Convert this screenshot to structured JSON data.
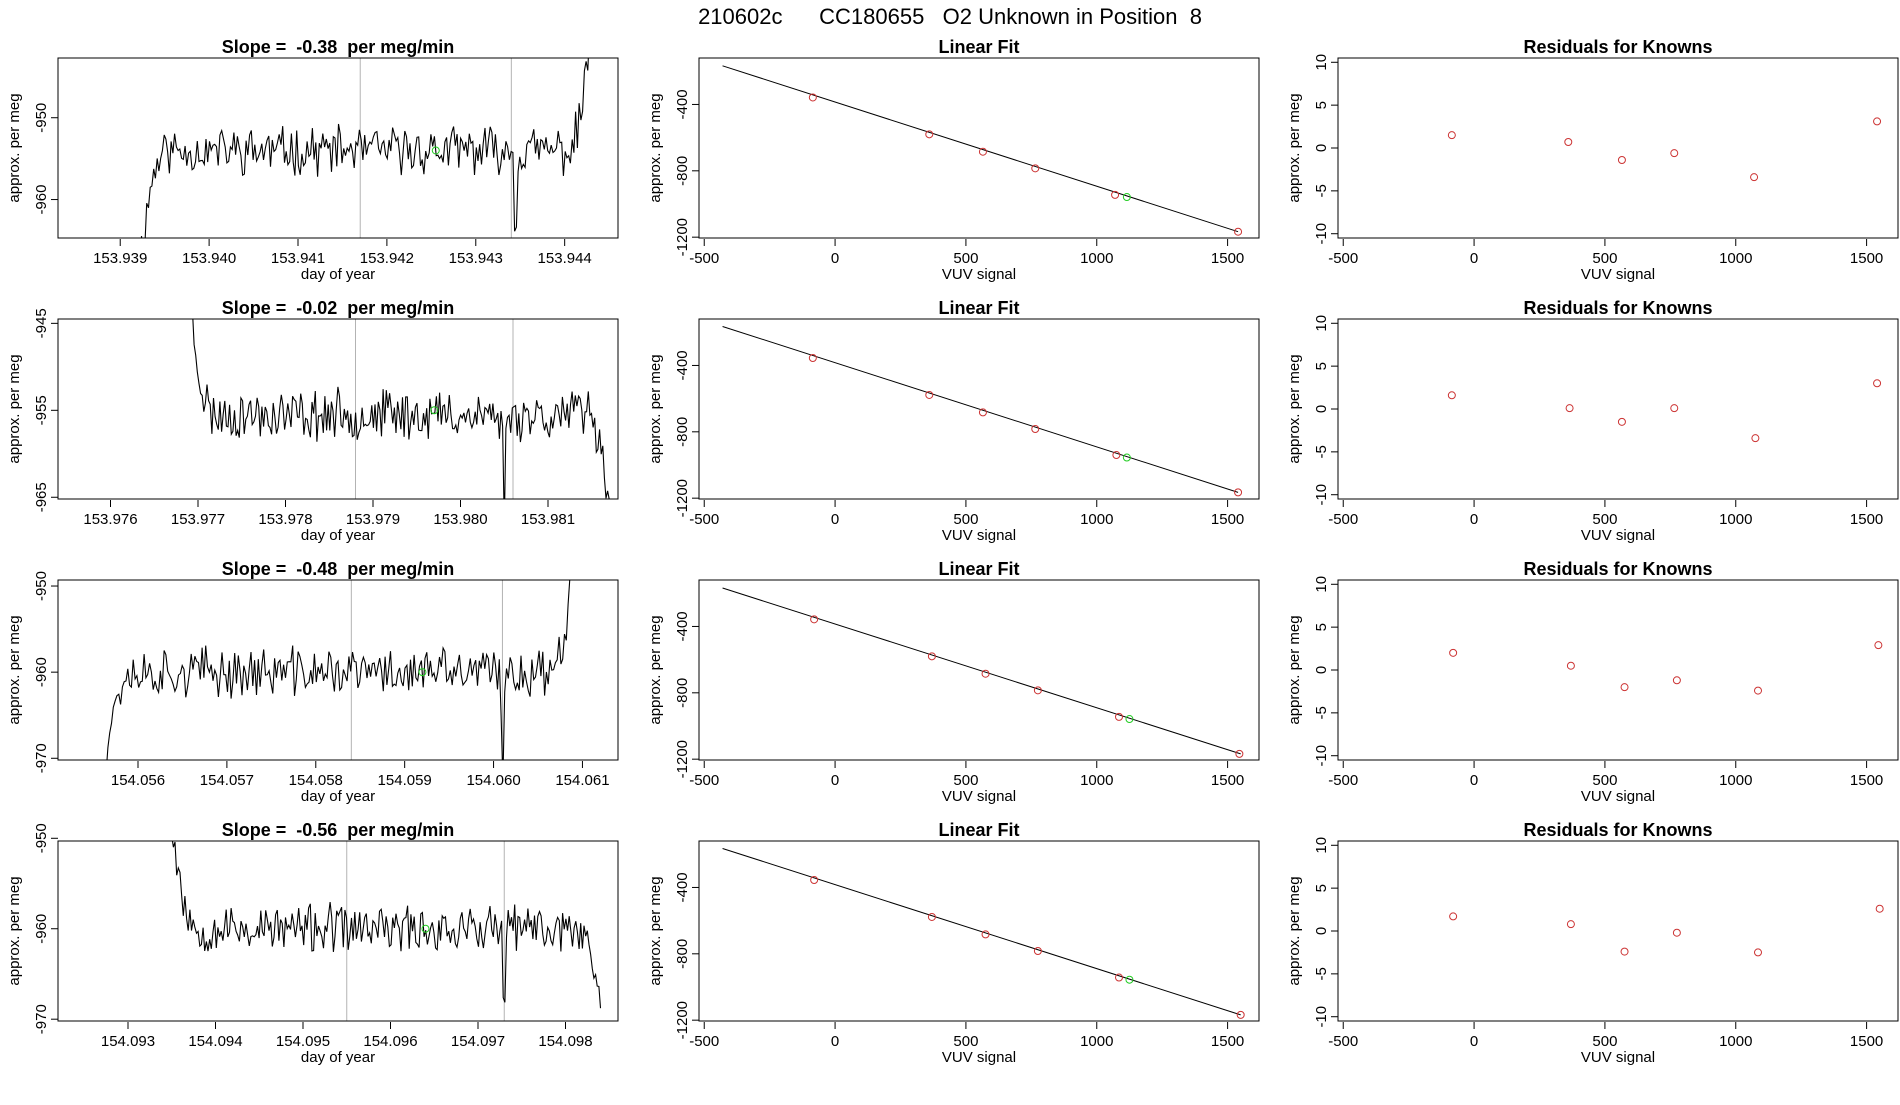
{
  "figure_title": "210602c      CC180655   O2 Unknown in Position  8",
  "colors": {
    "known": "#cc3333",
    "unknown": "#22cc22",
    "line": "#000000",
    "vline": "#b3b3b3"
  },
  "chart_data": [
    {
      "type": "line",
      "row": 0,
      "col": 0,
      "title": "Slope =  -0.38  per meg/min",
      "xlabel": "day of year",
      "ylabel": "approx. per meg",
      "xlim": [
        153.9383,
        153.9446
      ],
      "ylim": [
        -964.7,
        -942.7
      ],
      "xticks": [
        153.939,
        153.94,
        153.941,
        153.942,
        153.943,
        153.944
      ],
      "xtick_labels": [
        "153.939",
        "153.940",
        "153.941",
        "153.942",
        "153.943",
        "153.944"
      ],
      "yticks": [
        -960,
        -950
      ],
      "vlines": [
        153.9417,
        153.9434
      ],
      "x_start": 153.9392,
      "x_end": 153.9443,
      "baseline": -954,
      "noise": 2.4,
      "seed": 11,
      "start_from": -970,
      "end_to": -938,
      "dips": [
        {
          "x": 153.94345,
          "depth": 12
        }
      ],
      "unknown_point": {
        "x": 153.94255,
        "y": -954
      }
    },
    {
      "type": "scatter",
      "row": 0,
      "col": 1,
      "title": "Linear Fit",
      "xlabel": "VUV signal",
      "ylabel": "approx. per meg",
      "xlim": [
        -520,
        1620
      ],
      "ylim": [
        -1205,
        -120
      ],
      "xticks": [
        -500,
        0,
        500,
        1000,
        1500
      ],
      "yticks": [
        -1200,
        -800,
        -400
      ],
      "fit_line": {
        "x": [
          -430,
          1540
        ],
        "y": [
          -167,
          -1167
        ]
      },
      "known_points": [
        [
          -85,
          -358
        ],
        [
          360,
          -580
        ],
        [
          565,
          -685
        ],
        [
          765,
          -785
        ],
        [
          1070,
          -945
        ],
        [
          1540,
          -1167
        ]
      ],
      "unknown_point": [
        1115,
        -958
      ]
    },
    {
      "type": "scatter",
      "row": 0,
      "col": 2,
      "title": "Residuals for Knowns",
      "xlabel": "VUV signal",
      "ylabel": "approx. per meg",
      "xlim": [
        -520,
        1620
      ],
      "ylim": [
        -10.5,
        10.5
      ],
      "xticks": [
        -500,
        0,
        500,
        1000,
        1500
      ],
      "yticks": [
        -10,
        -5,
        0,
        5,
        10
      ],
      "known_points": [
        [
          -85,
          1.5
        ],
        [
          360,
          0.7
        ],
        [
          565,
          -1.4
        ],
        [
          765,
          -0.6
        ],
        [
          1070,
          -3.4
        ],
        [
          1540,
          3.1
        ]
      ]
    },
    {
      "type": "line",
      "row": 1,
      "col": 0,
      "title": "Slope =  -0.02  per meg/min",
      "xlabel": "day of year",
      "ylabel": "approx. per meg",
      "xlim": [
        153.9754,
        153.9818
      ],
      "ylim": [
        -965.2,
        -944.5
      ],
      "xticks": [
        153.976,
        153.977,
        153.978,
        153.979,
        153.98,
        153.981
      ],
      "xtick_labels": [
        "153.976",
        "153.977",
        "153.978",
        "153.979",
        "153.980",
        "153.981"
      ],
      "yticks": [
        -965,
        -955,
        -945
      ],
      "vlines": [
        153.9788,
        153.9806
      ],
      "x_start": 153.9769,
      "x_end": 153.9817,
      "baseline": -955.5,
      "noise": 2.4,
      "seed": 23,
      "start_from": -942,
      "end_to": -965,
      "dips": [
        {
          "x": 153.9805,
          "depth": 10
        }
      ],
      "unknown_point": {
        "x": 153.9797,
        "y": -955
      }
    },
    {
      "type": "scatter",
      "row": 1,
      "col": 1,
      "title": "Linear Fit",
      "xlabel": "VUV signal",
      "ylabel": "approx. per meg",
      "xlim": [
        -520,
        1620
      ],
      "ylim": [
        -1205,
        -120
      ],
      "xticks": [
        -500,
        0,
        500,
        1000,
        1500
      ],
      "yticks": [
        -1200,
        -800,
        -400
      ],
      "fit_line": {
        "x": [
          -430,
          1540
        ],
        "y": [
          -165,
          -1165
        ]
      },
      "known_points": [
        [
          -85,
          -355
        ],
        [
          360,
          -578
        ],
        [
          565,
          -683
        ],
        [
          765,
          -783
        ],
        [
          1075,
          -940
        ],
        [
          1540,
          -1165
        ]
      ],
      "unknown_point": [
        1115,
        -955
      ]
    },
    {
      "type": "scatter",
      "row": 1,
      "col": 2,
      "title": "Residuals for Knowns",
      "xlabel": "VUV signal",
      "ylabel": "approx. per meg",
      "xlim": [
        -520,
        1620
      ],
      "ylim": [
        -10.5,
        10.5
      ],
      "xticks": [
        -500,
        0,
        500,
        1000,
        1500
      ],
      "yticks": [
        -10,
        -5,
        0,
        5,
        10
      ],
      "known_points": [
        [
          -85,
          1.6
        ],
        [
          365,
          0.1
        ],
        [
          565,
          -1.5
        ],
        [
          765,
          0.1
        ],
        [
          1075,
          -3.4
        ],
        [
          1540,
          3.0
        ]
      ]
    },
    {
      "type": "line",
      "row": 2,
      "col": 0,
      "title": "Slope =  -0.48  per meg/min",
      "xlabel": "day of year",
      "ylabel": "approx. per meg",
      "xlim": [
        154.0551,
        154.0614
      ],
      "ylim": [
        -970.2,
        -949.3
      ],
      "xticks": [
        154.056,
        154.057,
        154.058,
        154.059,
        154.06,
        154.061
      ],
      "xtick_labels": [
        "154.056",
        "154.057",
        "154.058",
        "154.059",
        "154.060",
        "154.061"
      ],
      "yticks": [
        -970,
        -960,
        -950
      ],
      "vlines": [
        154.0584,
        154.0601
      ],
      "x_start": 154.0556,
      "x_end": 154.0609,
      "baseline": -960,
      "noise": 2.4,
      "seed": 37,
      "start_from": -972,
      "end_to": -946,
      "dips": [
        {
          "x": 154.0601,
          "depth": 14
        }
      ],
      "unknown_point": {
        "x": 154.0592,
        "y": -960
      }
    },
    {
      "type": "scatter",
      "row": 2,
      "col": 1,
      "title": "Linear Fit",
      "xlabel": "VUV signal",
      "ylabel": "approx. per meg",
      "xlim": [
        -520,
        1620
      ],
      "ylim": [
        -1205,
        -120
      ],
      "xticks": [
        -500,
        0,
        500,
        1000,
        1500
      ],
      "yticks": [
        -1200,
        -800,
        -400
      ],
      "fit_line": {
        "x": [
          -430,
          1550
        ],
        "y": [
          -168,
          -1168
        ]
      },
      "known_points": [
        [
          -80,
          -357
        ],
        [
          370,
          -580
        ],
        [
          575,
          -685
        ],
        [
          775,
          -785
        ],
        [
          1085,
          -945
        ],
        [
          1545,
          -1168
        ]
      ],
      "unknown_point": [
        1125,
        -958
      ]
    },
    {
      "type": "scatter",
      "row": 2,
      "col": 2,
      "title": "Residuals for Knowns",
      "xlabel": "VUV signal",
      "ylabel": "approx. per meg",
      "xlim": [
        -520,
        1620
      ],
      "ylim": [
        -10.5,
        10.5
      ],
      "xticks": [
        -500,
        0,
        500,
        1000,
        1500
      ],
      "yticks": [
        -10,
        -5,
        0,
        5,
        10
      ],
      "known_points": [
        [
          -80,
          2.0
        ],
        [
          370,
          0.5
        ],
        [
          575,
          -2.0
        ],
        [
          775,
          -1.2
        ],
        [
          1085,
          -2.4
        ],
        [
          1545,
          2.9
        ]
      ]
    },
    {
      "type": "line",
      "row": 3,
      "col": 0,
      "title": "Slope =  -0.56  per meg/min",
      "xlabel": "day of year",
      "ylabel": "approx. per meg",
      "xlim": [
        154.0922,
        154.0986
      ],
      "ylim": [
        -970.2,
        -950.3
      ],
      "xticks": [
        154.093,
        154.094,
        154.095,
        154.096,
        154.097,
        154.098
      ],
      "xtick_labels": [
        "154.093",
        "154.094",
        "154.095",
        "154.096",
        "154.097",
        "154.098"
      ],
      "yticks": [
        -970,
        -960,
        -950
      ],
      "vlines": [
        154.0955,
        154.0973
      ],
      "x_start": 154.0935,
      "x_end": 154.0984,
      "baseline": -960,
      "noise": 2.2,
      "seed": 53,
      "start_from": -948,
      "end_to": -969,
      "dips": [
        {
          "x": 154.0973,
          "depth": 12
        }
      ],
      "unknown_point": {
        "x": 154.0964,
        "y": -960
      }
    },
    {
      "type": "scatter",
      "row": 3,
      "col": 1,
      "title": "Linear Fit",
      "xlabel": "VUV signal",
      "ylabel": "approx. per meg",
      "xlim": [
        -520,
        1620
      ],
      "ylim": [
        -1205,
        -120
      ],
      "xticks": [
        -500,
        0,
        500,
        1000,
        1500
      ],
      "yticks": [
        -1200,
        -800,
        -400
      ],
      "fit_line": {
        "x": [
          -430,
          1550
        ],
        "y": [
          -165,
          -1168
        ]
      },
      "known_points": [
        [
          -80,
          -355
        ],
        [
          370,
          -578
        ],
        [
          575,
          -683
        ],
        [
          775,
          -783
        ],
        [
          1085,
          -943
        ],
        [
          1550,
          -1168
        ]
      ],
      "unknown_point": [
        1125,
        -956
      ]
    },
    {
      "type": "scatter",
      "row": 3,
      "col": 2,
      "title": "Residuals for Knowns",
      "xlabel": "VUV signal",
      "ylabel": "approx. per meg",
      "xlim": [
        -520,
        1620
      ],
      "ylim": [
        -10.5,
        10.5
      ],
      "xticks": [
        -500,
        0,
        500,
        1000,
        1500
      ],
      "yticks": [
        -10,
        -5,
        0,
        5,
        10
      ],
      "known_points": [
        [
          -80,
          1.7
        ],
        [
          370,
          0.8
        ],
        [
          575,
          -2.4
        ],
        [
          775,
          -0.2
        ],
        [
          1085,
          -2.5
        ],
        [
          1550,
          2.6
        ]
      ]
    }
  ]
}
